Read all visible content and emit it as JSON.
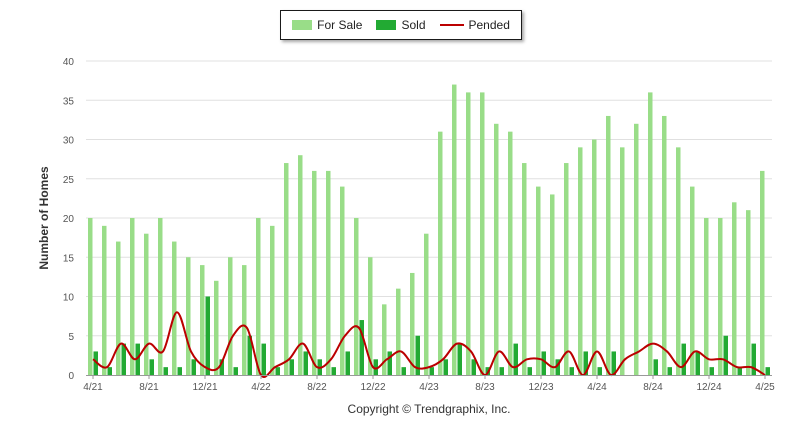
{
  "colors": {
    "for_sale": "#99dd88",
    "sold": "#22aa33",
    "pended": "#bb0000",
    "grid": "#e0e0e0",
    "axis_text": "#555555"
  },
  "copyright": "Copyright © Trendgraphix, Inc.",
  "chart_data": {
    "type": "bar",
    "title": "",
    "ylabel": "Number of Homes",
    "xlabel": "",
    "ylim": [
      0,
      40
    ],
    "yticks": [
      0,
      5,
      10,
      15,
      20,
      25,
      30,
      35,
      40
    ],
    "grid": true,
    "legend_position": "top-center",
    "months": [
      "4/21",
      "5/21",
      "6/21",
      "7/21",
      "8/21",
      "9/21",
      "10/21",
      "11/21",
      "12/21",
      "1/22",
      "2/22",
      "3/22",
      "4/22",
      "5/22",
      "6/22",
      "7/22",
      "8/22",
      "9/22",
      "10/22",
      "11/22",
      "12/22",
      "1/23",
      "2/23",
      "3/23",
      "4/23",
      "5/23",
      "6/23",
      "7/23",
      "8/23",
      "9/23",
      "10/23",
      "11/23",
      "12/23",
      "1/24",
      "2/24",
      "3/24",
      "4/24",
      "5/24",
      "6/24",
      "7/24",
      "8/24",
      "9/24",
      "10/24",
      "11/24",
      "12/24",
      "1/25",
      "2/25",
      "3/25",
      "4/25"
    ],
    "tick_labels": [
      "4/21",
      "8/21",
      "12/21",
      "4/22",
      "8/22",
      "12/22",
      "4/23",
      "8/23",
      "12/23",
      "4/24",
      "8/24",
      "12/24",
      "4/25"
    ],
    "series": [
      {
        "name": "For Sale",
        "kind": "bar",
        "values": [
          20,
          19,
          17,
          20,
          18,
          20,
          17,
          15,
          14,
          12,
          15,
          14,
          20,
          19,
          27,
          28,
          26,
          26,
          24,
          20,
          15,
          9,
          11,
          13,
          18,
          31,
          37,
          36,
          36,
          32,
          31,
          27,
          24,
          23,
          27,
          29,
          30,
          33,
          29,
          32,
          36,
          33,
          29,
          24,
          20,
          20,
          22,
          21,
          26
        ]
      },
      {
        "name": "Sold",
        "kind": "bar",
        "values": [
          3,
          1,
          4,
          4,
          2,
          1,
          1,
          2,
          10,
          2,
          1,
          5,
          4,
          1,
          2,
          3,
          2,
          1,
          3,
          7,
          2,
          3,
          1,
          5,
          1,
          2,
          4,
          2,
          1,
          1,
          4,
          1,
          3,
          2,
          1,
          3,
          1,
          3,
          0,
          0,
          2,
          1,
          4,
          3,
          1,
          5,
          1,
          4,
          1
        ]
      },
      {
        "name": "Pended",
        "kind": "line",
        "values": [
          2,
          1,
          4,
          2,
          4,
          3,
          8,
          3,
          1,
          1,
          5,
          6,
          0,
          1,
          2,
          4,
          1,
          2,
          5,
          6,
          1,
          2,
          3,
          1,
          1,
          2,
          4,
          3,
          0,
          3,
          1,
          2,
          2,
          1,
          3,
          0,
          3,
          0,
          2,
          3,
          4,
          3,
          1,
          3,
          2,
          2,
          1,
          1,
          0
        ]
      }
    ]
  }
}
